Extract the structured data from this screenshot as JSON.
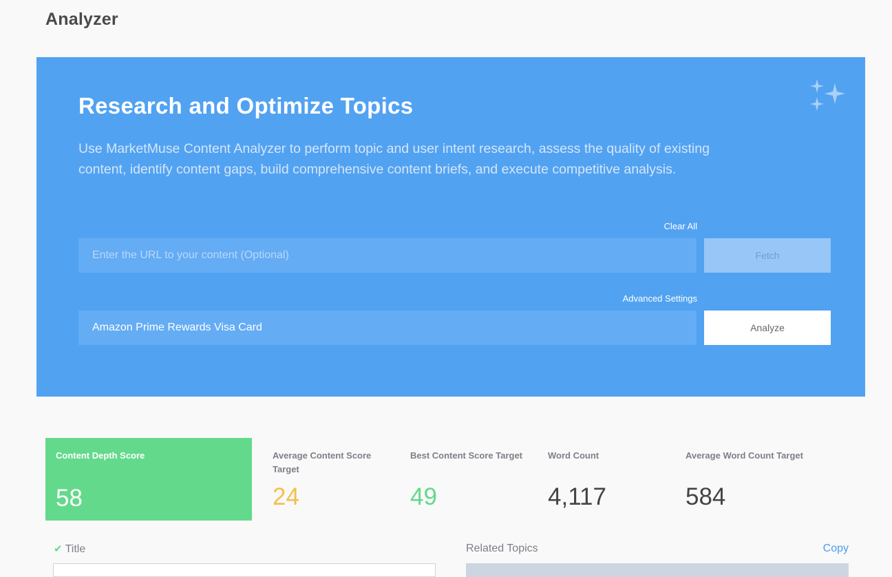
{
  "page": {
    "title": "Analyzer"
  },
  "hero": {
    "title": "Research and Optimize Topics",
    "description": "Use MarketMuse Content Analyzer to perform topic and user intent research, assess the quality of existing content, identify content gaps, build comprehensive content briefs, and execute competitive analysis.",
    "clear_all_label": "Clear All",
    "url_input": {
      "placeholder": "Enter the URL to your content (Optional)",
      "value": ""
    },
    "fetch_label": "Fetch",
    "advanced_settings_label": "Advanced Settings",
    "topic_input": {
      "placeholder": "",
      "value": "Amazon Prime Rewards Visa Card"
    },
    "analyze_label": "Analyze",
    "icon": "sparkles-icon"
  },
  "metrics": {
    "content_depth": {
      "label": "Content Depth Score",
      "value": "58"
    },
    "avg_content_score": {
      "label": "Average Content Score Target",
      "value": "24"
    },
    "best_content_score": {
      "label": "Best Content Score Target",
      "value": "49"
    },
    "word_count": {
      "label": "Word Count",
      "value": "4,117"
    },
    "avg_word_count": {
      "label": "Average Word Count Target",
      "value": "584"
    }
  },
  "sections": {
    "title_label": "Title",
    "related_topics_label": "Related Topics",
    "copy_label": "Copy"
  },
  "colors": {
    "hero_bg": "#52a2f2",
    "score_green": "#63d98b",
    "score_yellow": "#f3c04c",
    "link_blue": "#4a9bf0"
  }
}
